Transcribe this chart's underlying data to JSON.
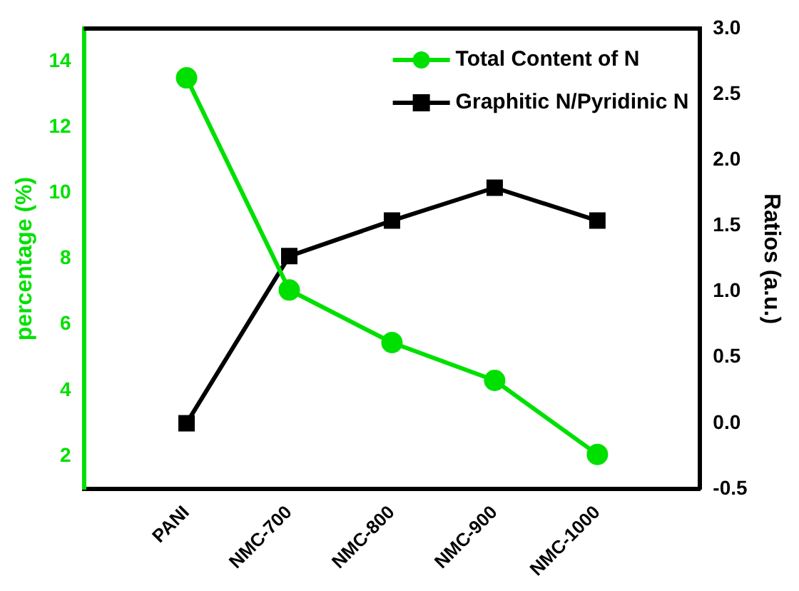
{
  "chart_data": {
    "type": "line",
    "categories": [
      "PANI",
      "NMC-700",
      "NMC-800",
      "NMC-900",
      "NMC-1000"
    ],
    "series": [
      {
        "name": "Total Content of N",
        "color": "#00e000",
        "values": [
          13.5,
          7.05,
          5.45,
          4.3,
          2.05
        ],
        "marker": "circle"
      },
      {
        "name": "Graphitic N/Pyridinic N",
        "color": "#000000",
        "values": [
          0.0,
          1.27,
          1.54,
          1.79,
          1.54
        ],
        "marker": "square",
        "axis": "y2"
      }
    ],
    "ylabel": "percentage (%)",
    "y2label": "Ratios (a.u.)",
    "ylim": [
      1,
      15
    ],
    "yticks": [
      2,
      4,
      6,
      8,
      10,
      12,
      14
    ],
    "y2lim": [
      -0.5,
      3.0
    ],
    "y2ticks": [
      {
        "value": -0.5,
        "label": "-0.5"
      },
      {
        "value": 0,
        "label": "0.0"
      },
      {
        "value": 0.5,
        "label": "0.5"
      },
      {
        "value": 1,
        "label": "1.0"
      },
      {
        "value": 1.5,
        "label": "1.5"
      },
      {
        "value": 2,
        "label": "2.0"
      },
      {
        "value": 2.5,
        "label": "2.5"
      },
      {
        "value": 3,
        "label": "3.0"
      }
    ],
    "legend": "top right"
  }
}
